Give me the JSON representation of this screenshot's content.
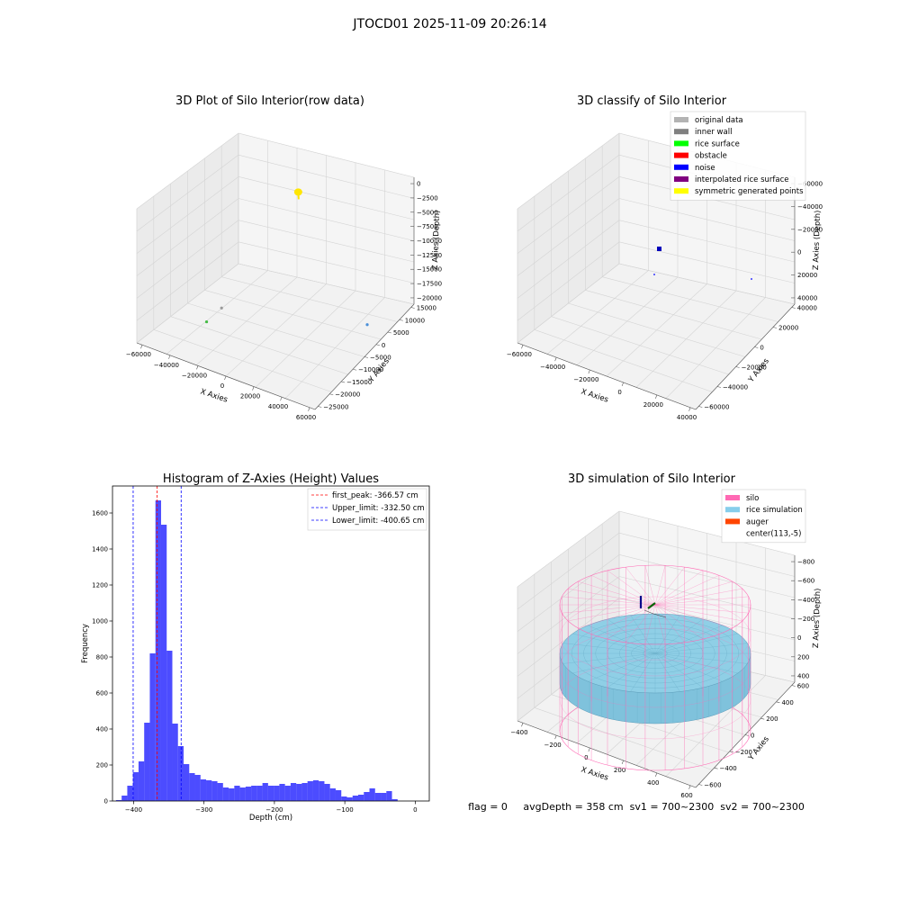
{
  "suptitle": "JTOCD01 2025-11-09 20:26:14",
  "status_line": "flag = 0     avgDepth = 358 cm  sv1 = 700~2300  sv2 = 700~2300",
  "chart_data": [
    {
      "type": "scatter",
      "projection": "3d",
      "title": "3D Plot of Silo Interior(row data)",
      "xlabel": "X Axies",
      "ylabel": "Y Axies",
      "zlabel": "Z Axies (Depth)",
      "x_ticks": [
        "−60000",
        "−40000",
        "−20000",
        "0",
        "20000",
        "40000",
        "60000"
      ],
      "y_ticks": [
        "−25000",
        "−20000",
        "−15000",
        "−10000",
        "−5000",
        "0",
        "5000",
        "10000",
        "15000"
      ],
      "z_ticks": [
        "0",
        "−2500",
        "−5000",
        "−7500",
        "−10000",
        "−12500",
        "−15000",
        "−17500",
        "−20000"
      ],
      "xlim": [
        -60000,
        60000
      ],
      "ylim": [
        -25000,
        15000
      ],
      "zlim": [
        -20000,
        0
      ],
      "grid": true,
      "clusters": [
        {
          "color": "#ffe600",
          "x": -2000,
          "y": 5000,
          "z": -2500
        },
        {
          "color": "#999999",
          "x": -25000,
          "y": -12000,
          "z": -16000
        },
        {
          "color": "#44bb44",
          "x": -30000,
          "y": -15000,
          "z": -17500
        },
        {
          "color": "#4a8fd8",
          "x": 45000,
          "y": 5000,
          "z": -20000
        }
      ]
    },
    {
      "type": "scatter",
      "projection": "3d",
      "title": "3D classify of Silo Interior",
      "xlabel": "X Axies",
      "ylabel": "Y Axies",
      "zlabel": "Z Axies (Depth)",
      "x_ticks": [
        "−60000",
        "−40000",
        "−20000",
        "0",
        "20000",
        "40000"
      ],
      "y_ticks": [
        "−60000",
        "−40000",
        "−20000",
        "0",
        "20000",
        "40000"
      ],
      "z_ticks": [
        "−60000",
        "−40000",
        "−20000",
        "0",
        "20000",
        "40000"
      ],
      "xlim": [
        -60000,
        40000
      ],
      "ylim": [
        -60000,
        40000
      ],
      "zlim": [
        -60000,
        40000
      ],
      "grid": true,
      "legend_position": "upper right",
      "legend": [
        {
          "label": "original data",
          "color": "#b3b3b3"
        },
        {
          "label": "inner wall",
          "color": "#808080"
        },
        {
          "label": "rice surface",
          "color": "#00ff00"
        },
        {
          "label": "obstacle",
          "color": "#ff0000"
        },
        {
          "label": "noise",
          "color": "#0000ff"
        },
        {
          "label": "interpolated rice surface",
          "color": "#800080"
        },
        {
          "label": "symmetric generated points",
          "color": "#ffff00"
        }
      ]
    },
    {
      "type": "bar",
      "title": "Histogram of Z-Axies (Height) Values",
      "xlabel": "Depth (cm)",
      "ylabel": "Frequency",
      "xlim": [
        -430,
        20
      ],
      "ylim": [
        0,
        1750
      ],
      "x_ticks": [
        -400,
        -300,
        -200,
        -100,
        0
      ],
      "y_ticks": [
        0,
        200,
        400,
        600,
        800,
        1000,
        1200,
        1400,
        1600
      ],
      "bar_color": "#0000ff",
      "bin_start": -425,
      "bin_width": 8,
      "values": [
        5,
        30,
        85,
        160,
        220,
        435,
        820,
        1670,
        1535,
        835,
        430,
        305,
        205,
        155,
        145,
        120,
        115,
        110,
        100,
        75,
        70,
        85,
        75,
        80,
        85,
        85,
        100,
        85,
        85,
        95,
        85,
        100,
        95,
        100,
        110,
        115,
        110,
        95,
        70,
        60,
        25,
        20,
        30,
        35,
        50,
        70,
        45,
        45,
        55,
        10
      ],
      "legend_position": "upper right",
      "vlines": [
        {
          "label": "first_peak: -366.57 cm",
          "x": -366.57,
          "color": "#ff0000"
        },
        {
          "label": "Upper_limit: -332.50 cm",
          "x": -332.5,
          "color": "#0000ff"
        },
        {
          "label": "Lower_limit: -400.65 cm",
          "x": -400.65,
          "color": "#0000ff"
        }
      ]
    },
    {
      "type": "surface",
      "projection": "3d",
      "title": "3D simulation of Silo Interior",
      "xlabel": "X Axies",
      "ylabel": "Y Axies",
      "zlabel": "Z Axies (Depth)",
      "x_ticks": [
        "−400",
        "−200",
        "0",
        "200",
        "400",
        "600"
      ],
      "y_ticks": [
        "−600",
        "−400",
        "−200",
        "0",
        "200",
        "400",
        "600"
      ],
      "z_ticks": [
        "−800",
        "−600",
        "−400",
        "−200",
        "0",
        "200",
        "400"
      ],
      "xlim": [
        -450,
        650
      ],
      "ylim": [
        -650,
        650
      ],
      "zlim": [
        -900,
        450
      ],
      "grid": true,
      "legend_position": "upper right",
      "legend": [
        {
          "label": "silo",
          "color": "#ff69b4"
        },
        {
          "label": "rice simulation",
          "color": "#87ceeb"
        },
        {
          "label": "auger",
          "color": "#ff4500"
        },
        {
          "label": "center(113,-5)",
          "color": "#ffffff"
        }
      ]
    }
  ]
}
